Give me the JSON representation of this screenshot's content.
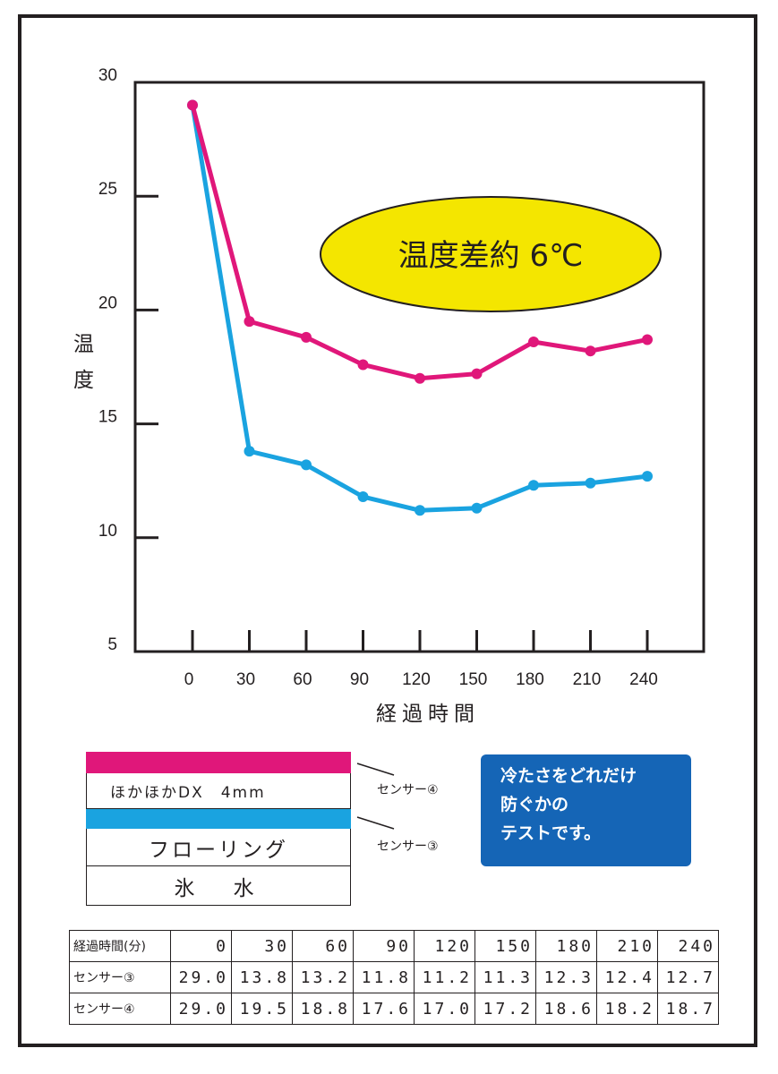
{
  "chart_data": {
    "type": "line",
    "ylabel": "温度",
    "xlabel": "経過時間",
    "x": [
      0,
      30,
      60,
      90,
      120,
      150,
      180,
      210,
      240
    ],
    "ylim": [
      5,
      30
    ],
    "yticks": [
      5,
      10,
      15,
      20,
      25,
      30
    ],
    "series": [
      {
        "name": "センサー④",
        "color": "#e0177a",
        "values": [
          29.0,
          19.5,
          18.8,
          17.6,
          17.0,
          17.2,
          18.6,
          18.2,
          18.7
        ]
      },
      {
        "name": "センサー③",
        "color": "#1aa3e0",
        "values": [
          29.0,
          13.8,
          13.2,
          11.8,
          11.2,
          11.3,
          12.3,
          12.4,
          12.7
        ]
      }
    ],
    "callout": {
      "text": "温度差約 6℃",
      "color": "#f4e600"
    },
    "grid": false,
    "legend": "none"
  },
  "diagram": {
    "top_band_color": "#e0177a",
    "mid_band_color": "#1aa3e0",
    "layer_dx": "ほかほかDX　4mm",
    "layer_floor": "フローリング",
    "layer_ice": "氷　水",
    "sensor4": "センサー④",
    "sensor3": "センサー③"
  },
  "note": {
    "line1": "冷たさをどれだけ",
    "line2": "防ぐかの",
    "line3": "テストです。",
    "color": "#1565b6"
  },
  "table": {
    "header_label": "経過時間(分)",
    "times": [
      "0",
      "30",
      "60",
      "90",
      "120",
      "150",
      "180",
      "210",
      "240"
    ],
    "rows": [
      {
        "label": "センサー③",
        "values": [
          "29.0",
          "13.8",
          "13.2",
          "11.8",
          "11.2",
          "11.3",
          "12.3",
          "12.4",
          "12.7"
        ]
      },
      {
        "label": "センサー④",
        "values": [
          "29.0",
          "19.5",
          "18.8",
          "17.6",
          "17.0",
          "17.2",
          "18.6",
          "18.2",
          "18.7"
        ]
      }
    ]
  }
}
